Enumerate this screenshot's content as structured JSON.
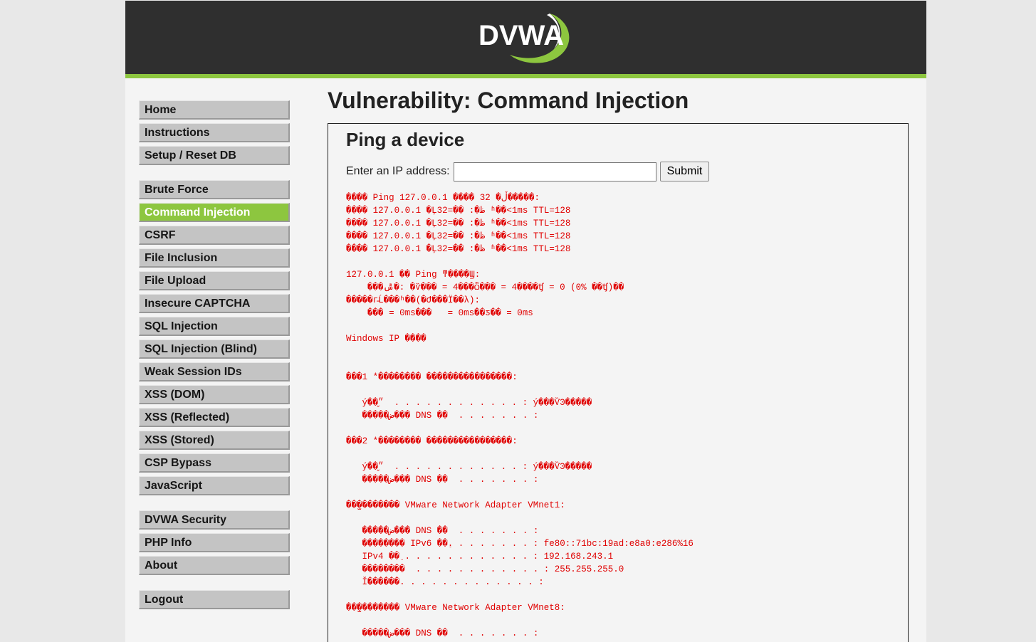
{
  "header": {
    "logo": "DVWA"
  },
  "menu": {
    "groups": [
      [
        {
          "label": "Home"
        },
        {
          "label": "Instructions"
        },
        {
          "label": "Setup / Reset DB"
        }
      ],
      [
        {
          "label": "Brute Force"
        },
        {
          "label": "Command Injection",
          "active": true
        },
        {
          "label": "CSRF"
        },
        {
          "label": "File Inclusion"
        },
        {
          "label": "File Upload"
        },
        {
          "label": "Insecure CAPTCHA"
        },
        {
          "label": "SQL Injection"
        },
        {
          "label": "SQL Injection (Blind)"
        },
        {
          "label": "Weak Session IDs"
        },
        {
          "label": "XSS (DOM)"
        },
        {
          "label": "XSS (Reflected)"
        },
        {
          "label": "XSS (Stored)"
        },
        {
          "label": "CSP Bypass"
        },
        {
          "label": "JavaScript"
        }
      ],
      [
        {
          "label": "DVWA Security"
        },
        {
          "label": "PHP Info"
        },
        {
          "label": "About"
        }
      ],
      [
        {
          "label": "Logout"
        }
      ]
    ]
  },
  "main": {
    "title": "Vulnerability: Command Injection",
    "form": {
      "heading": "Ping a device",
      "label": "Enter an IP address:",
      "button": "Submit"
    },
    "output": "���� Ping 127.0.0.1 ���� 32 �ֽڵ�����:\n���� 127.0.0.1 �Ļ32=�� :�ظ ʱ��<1ms TTL=128\n���� 127.0.0.1 �Ļ32=�� :�ظ ʱ��<1ms TTL=128\n���� 127.0.0.1 �Ļ32=�� :�ظ ʱ��<1ms TTL=128\n���� 127.0.0.1 �Ļ32=�� :�ظ ʱ��<1ms TTL=128\n\n127.0.0.1 �� Ping ͳ����Ϣ:\n    ���ݰ�: �ѷ��� = 4���ѽ��� = 4����ʧ = 0 (0% ��ʧ)��\n�����г̵Ĺ���ʱ��(�Ժ���Ϊ��λ):\n    ��� = 0ms���   = 0ms��ƽ�� = 0ms\n\nWindows IP ����\n\n\n���1 *�������� ����������������:\n\n   ý��״̬  . . . . . . . . . . . . : ý���ѶϿ�����\n   �����ض��� DNS ��  . . . . . . . :\n\n���2 *�������� ����������������:\n\n   ý��״̬  . . . . . . . . . . . . : ý���ѶϿ�����\n   �����ض��� DNS ��  . . . . . . . :\n\n��̫�������� VMware Network Adapter VMnet1:\n\n   �����ض��� DNS ��  . . . . . . . :\n   �������� IPv6 ��ַ. . . . . . . . : fe80::71bc:19ad:e8a0:e286%16\n   IPv4 ��ַ . . . . . . . . . . . . : 192.168.243.1\n   ��������  . . . . . . . . . . . . : 255.255.255.0\n   Ĭ������. . . . . . . . . . . . . :\n\n��̫�������� VMware Network Adapter VMnet8:\n\n   �����ض��� DNS ��  . . . . . . . :"
  }
}
